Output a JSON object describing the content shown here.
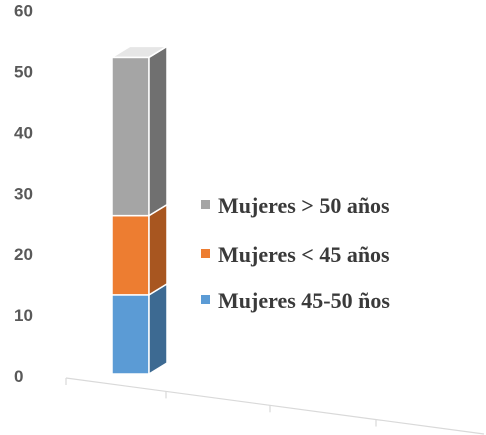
{
  "chart_data": {
    "type": "bar",
    "stacked": true,
    "three_d": true,
    "categories": [
      ""
    ],
    "series": [
      {
        "name": "Mujeres 45-50 ños",
        "values": [
          13
        ],
        "color": "#5b9bd5",
        "side_color": "#3d6a92",
        "top_color": "#8cb9e3"
      },
      {
        "name": "Mujeres  < 45 años",
        "values": [
          13
        ],
        "color": "#ed7d31",
        "side_color": "#a85620",
        "top_color": "#f4a66c"
      },
      {
        "name": "Mujeres > 50 años",
        "values": [
          26
        ],
        "color": "#a5a5a5",
        "side_color": "#707070",
        "top_color": "#e6e6e6"
      }
    ],
    "yticks": [
      0,
      10,
      20,
      30,
      40,
      50,
      60
    ],
    "ytick_labels": [
      "0",
      "10",
      "20",
      "30",
      "40",
      "50",
      "60"
    ],
    "ylim": [
      0,
      60
    ],
    "title": "",
    "xlabel": "",
    "ylabel": "",
    "grid": false,
    "legend": {
      "placement": "right",
      "order": [
        "Mujeres > 50 años",
        "Mujeres  < 45 años",
        "Mujeres 45-50 ños"
      ]
    }
  }
}
